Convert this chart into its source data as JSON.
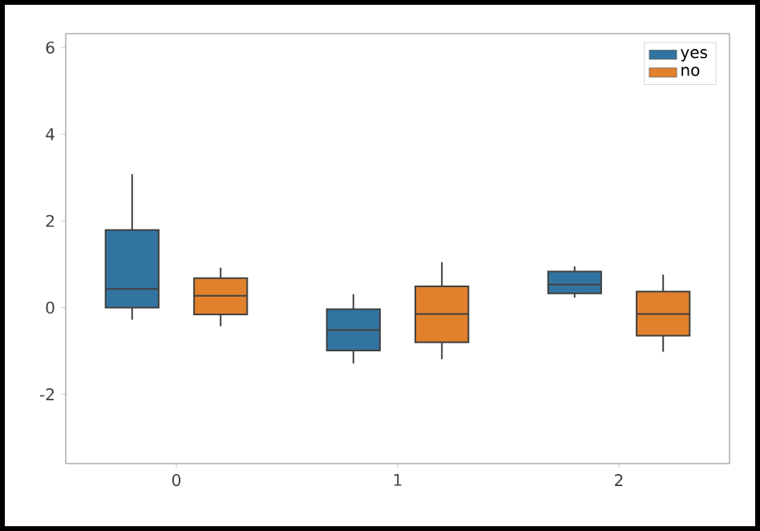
{
  "chart_data": {
    "type": "box",
    "categories": [
      "0",
      "1",
      "2"
    ],
    "ylim": [
      -3.6,
      6.32
    ],
    "yticks": [
      -2,
      0,
      2,
      4,
      6
    ],
    "legend": "top right",
    "series": [
      {
        "name": "yes",
        "color": "#3274a1",
        "boxes": [
          {
            "low": -0.28,
            "q1": 0,
            "median": 0.43,
            "q3": 1.79,
            "high": 3.08
          },
          {
            "low": -1.29,
            "q1": -0.99,
            "median": -0.52,
            "q3": -0.04,
            "high": 0.31
          },
          {
            "low": 0.23,
            "q1": 0.33,
            "median": 0.53,
            "q3": 0.83,
            "high": 0.95
          }
        ]
      },
      {
        "name": "no",
        "color": "#e1812c",
        "boxes": [
          {
            "low": -0.43,
            "q1": -0.16,
            "median": 0.27,
            "q3": 0.68,
            "high": 0.92
          },
          {
            "low": -1.19,
            "q1": -0.8,
            "median": -0.15,
            "q3": 0.49,
            "high": 1.05
          },
          {
            "low": -1.02,
            "q1": -0.65,
            "median": -0.15,
            "q3": 0.37,
            "high": 0.76
          }
        ]
      }
    ]
  }
}
